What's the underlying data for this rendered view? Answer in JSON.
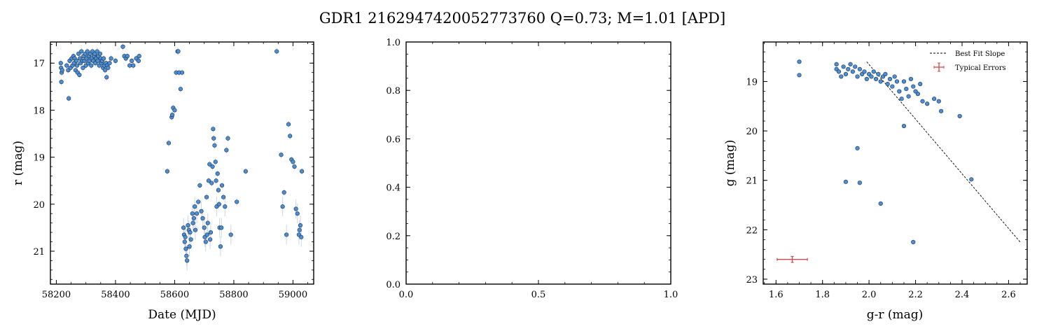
{
  "figure": {
    "title": "GDR1 2162947420052773760  Q=0.73; M=1.01 [APD]",
    "colors": {
      "point": "#4a8fd6",
      "point_edge": "#1f2f45",
      "errorbar": "#cc4b4b",
      "fit": "#000000",
      "lightcurve_err": "#c9d7e6"
    }
  },
  "chart_data": [
    {
      "type": "scatter",
      "xlabel": "Date (MJD)",
      "ylabel": "r (mag)",
      "xlim": [
        58180,
        59070
      ],
      "ylim": [
        21.7,
        16.55
      ],
      "y_inverted": true,
      "xticks": [
        58200,
        58400,
        58600,
        58800,
        59000
      ],
      "yticks": [
        17,
        18,
        19,
        20,
        21
      ],
      "points": [
        [
          58215,
          17.0
        ],
        [
          58216,
          17.1
        ],
        [
          58218,
          17.2
        ],
        [
          58217,
          17.4
        ],
        [
          58220,
          17.15
        ],
        [
          58235,
          17.05
        ],
        [
          58240,
          17.15
        ],
        [
          58242,
          17.75
        ],
        [
          58245,
          16.95
        ],
        [
          58248,
          17.1
        ],
        [
          58252,
          16.9
        ],
        [
          58255,
          17.05
        ],
        [
          58258,
          16.85
        ],
        [
          58260,
          17.0
        ],
        [
          58262,
          16.9
        ],
        [
          58265,
          17.15
        ],
        [
          58268,
          16.95
        ],
        [
          58270,
          17.05
        ],
        [
          58272,
          17.2
        ],
        [
          58275,
          16.8
        ],
        [
          58278,
          17.25
        ],
        [
          58280,
          16.9
        ],
        [
          58282,
          17.0
        ],
        [
          58285,
          16.75
        ],
        [
          58288,
          16.95
        ],
        [
          58290,
          17.1
        ],
        [
          58292,
          16.85
        ],
        [
          58295,
          16.95
        ],
        [
          58298,
          16.8
        ],
        [
          58300,
          17.05
        ],
        [
          58302,
          16.9
        ],
        [
          58305,
          16.75
        ],
        [
          58308,
          17.0
        ],
        [
          58310,
          16.85
        ],
        [
          58312,
          16.95
        ],
        [
          58315,
          16.8
        ],
        [
          58318,
          17.05
        ],
        [
          58320,
          16.9
        ],
        [
          58322,
          16.75
        ],
        [
          58325,
          16.95
        ],
        [
          58328,
          16.85
        ],
        [
          58330,
          16.8
        ],
        [
          58332,
          17.0
        ],
        [
          58335,
          16.9
        ],
        [
          58338,
          16.75
        ],
        [
          58340,
          16.95
        ],
        [
          58342,
          16.85
        ],
        [
          58345,
          17.05
        ],
        [
          58348,
          16.8
        ],
        [
          58350,
          16.9
        ],
        [
          58352,
          17.0
        ],
        [
          58355,
          16.95
        ],
        [
          58358,
          17.1
        ],
        [
          58360,
          16.9
        ],
        [
          58362,
          17.05
        ],
        [
          58365,
          17.15
        ],
        [
          58368,
          17.0
        ],
        [
          58370,
          17.3
        ],
        [
          58372,
          17.05
        ],
        [
          58375,
          17.1
        ],
        [
          58380,
          17.0
        ],
        [
          58385,
          16.9
        ],
        [
          58400,
          16.95
        ],
        [
          58425,
          16.65
        ],
        [
          58430,
          16.85
        ],
        [
          58435,
          16.9
        ],
        [
          58440,
          16.85
        ],
        [
          58448,
          17.05
        ],
        [
          58455,
          16.95
        ],
        [
          58460,
          17.05
        ],
        [
          58470,
          16.9
        ],
        [
          58478,
          16.95
        ],
        [
          58480,
          16.85
        ],
        [
          58575,
          19.3
        ],
        [
          58580,
          18.7
        ],
        [
          58590,
          18.15
        ],
        [
          58592,
          18.1
        ],
        [
          58595,
          17.95
        ],
        [
          58600,
          18.0
        ],
        [
          58605,
          17.2
        ],
        [
          58610,
          16.75
        ],
        [
          58612,
          16.75
        ],
        [
          58615,
          17.2
        ],
        [
          58620,
          17.55
        ],
        [
          58625,
          17.2
        ],
        [
          58630,
          20.5
        ],
        [
          58632,
          20.65
        ],
        [
          58634,
          20.8
        ],
        [
          58636,
          20.7
        ],
        [
          58638,
          20.95
        ],
        [
          58640,
          21.1
        ],
        [
          58642,
          21.2
        ],
        [
          58645,
          20.45
        ],
        [
          58648,
          20.55
        ],
        [
          58650,
          20.9
        ],
        [
          58652,
          20.6
        ],
        [
          58655,
          20.75
        ],
        [
          58660,
          20.2
        ],
        [
          58662,
          20.4
        ],
        [
          58665,
          20.3
        ],
        [
          58668,
          20.05
        ],
        [
          58670,
          20.55
        ],
        [
          58675,
          20.2
        ],
        [
          58680,
          19.95
        ],
        [
          58685,
          19.6
        ],
        [
          58690,
          20.15
        ],
        [
          58695,
          20.3
        ],
        [
          58700,
          20.5
        ],
        [
          58702,
          20.7
        ],
        [
          58705,
          20.8
        ],
        [
          58708,
          19.85
        ],
        [
          58710,
          20.65
        ],
        [
          58712,
          20.4
        ],
        [
          58715,
          19.5
        ],
        [
          58718,
          19.15
        ],
        [
          58720,
          20.75
        ],
        [
          58722,
          20.6
        ],
        [
          58725,
          19.55
        ],
        [
          58728,
          19.2
        ],
        [
          58730,
          18.4
        ],
        [
          58732,
          18.6
        ],
        [
          58735,
          18.75
        ],
        [
          58738,
          19.1
        ],
        [
          58740,
          19.5
        ],
        [
          58742,
          20.05
        ],
        [
          58745,
          19.35
        ],
        [
          58748,
          19.7
        ],
        [
          58750,
          20.0
        ],
        [
          58752,
          20.5
        ],
        [
          58755,
          20.9
        ],
        [
          58758,
          20.5
        ],
        [
          58760,
          19.6
        ],
        [
          58765,
          19.85
        ],
        [
          58770,
          20.05
        ],
        [
          58775,
          18.85
        ],
        [
          58780,
          18.6
        ],
        [
          58790,
          20.65
        ],
        [
          58810,
          19.95
        ],
        [
          58840,
          19.3
        ],
        [
          58945,
          16.75
        ],
        [
          58960,
          18.95
        ],
        [
          58965,
          20.05
        ],
        [
          58970,
          19.75
        ],
        [
          58978,
          20.65
        ],
        [
          58985,
          18.3
        ],
        [
          58990,
          18.55
        ],
        [
          58995,
          19.05
        ],
        [
          59000,
          19.1
        ],
        [
          59005,
          19.2
        ],
        [
          59010,
          20.1
        ],
        [
          59015,
          20.2
        ],
        [
          59020,
          20.65
        ],
        [
          59022,
          20.55
        ],
        [
          59025,
          20.45
        ],
        [
          59028,
          20.7
        ],
        [
          59030,
          19.3
        ]
      ]
    },
    {
      "type": "scatter",
      "xlabel": "",
      "ylabel": "",
      "xlim": [
        0,
        1
      ],
      "ylim": [
        0,
        1
      ],
      "xticks": [
        0.0,
        0.5,
        1.0
      ],
      "yticks": [
        0.0,
        0.2,
        0.4,
        0.6,
        0.8,
        1.0
      ],
      "points": []
    },
    {
      "type": "scatter",
      "xlabel": "g-r (mag)",
      "ylabel": "g (mag)",
      "xlim": [
        1.545,
        2.68
      ],
      "ylim": [
        23.1,
        18.2
      ],
      "y_inverted": true,
      "xticks": [
        1.6,
        1.8,
        2.0,
        2.2,
        2.4,
        2.6
      ],
      "yticks": [
        19,
        20,
        21,
        22,
        23
      ],
      "legend_position": "top-right",
      "legend": [
        "Best Fit Slope",
        "Typical Errors"
      ],
      "best_fit_line": [
        [
          1.99,
          18.6
        ],
        [
          2.65,
          22.25
        ]
      ],
      "typical_error": {
        "x": 1.67,
        "y": 22.6,
        "xerr": 0.065,
        "yerr": 0.06
      },
      "points": [
        [
          1.7,
          18.6
        ],
        [
          1.7,
          18.87
        ],
        [
          1.86,
          18.65
        ],
        [
          1.86,
          18.75
        ],
        [
          1.87,
          18.8
        ],
        [
          1.88,
          18.9
        ],
        [
          1.89,
          18.7
        ],
        [
          1.9,
          18.85
        ],
        [
          1.91,
          18.75
        ],
        [
          1.92,
          18.65
        ],
        [
          1.93,
          18.8
        ],
        [
          1.94,
          18.7
        ],
        [
          1.95,
          18.9
        ],
        [
          1.96,
          18.75
        ],
        [
          1.97,
          18.85
        ],
        [
          1.98,
          18.8
        ],
        [
          1.99,
          18.95
        ],
        [
          2.0,
          18.85
        ],
        [
          2.01,
          18.9
        ],
        [
          2.02,
          18.8
        ],
        [
          2.03,
          18.95
        ],
        [
          2.04,
          18.85
        ],
        [
          2.05,
          19.0
        ],
        [
          2.06,
          18.9
        ],
        [
          2.07,
          18.85
        ],
        [
          2.08,
          19.05
        ],
        [
          2.09,
          18.95
        ],
        [
          2.1,
          19.1
        ],
        [
          2.11,
          18.9
        ],
        [
          2.12,
          19.0
        ],
        [
          2.13,
          19.2
        ],
        [
          2.14,
          19.35
        ],
        [
          2.15,
          19.0
        ],
        [
          2.16,
          19.15
        ],
        [
          2.17,
          19.3
        ],
        [
          2.18,
          18.95
        ],
        [
          2.19,
          19.1
        ],
        [
          2.2,
          19.2
        ],
        [
          2.21,
          19.25
        ],
        [
          2.22,
          19.05
        ],
        [
          2.23,
          19.4
        ],
        [
          2.25,
          19.45
        ],
        [
          2.28,
          19.35
        ],
        [
          2.3,
          19.4
        ],
        [
          2.31,
          19.6
        ],
        [
          2.39,
          19.7
        ],
        [
          2.44,
          20.98
        ],
        [
          2.15,
          19.9
        ],
        [
          1.95,
          20.35
        ],
        [
          1.9,
          21.03
        ],
        [
          1.96,
          21.05
        ],
        [
          2.05,
          21.47
        ],
        [
          2.19,
          22.25
        ]
      ]
    }
  ]
}
